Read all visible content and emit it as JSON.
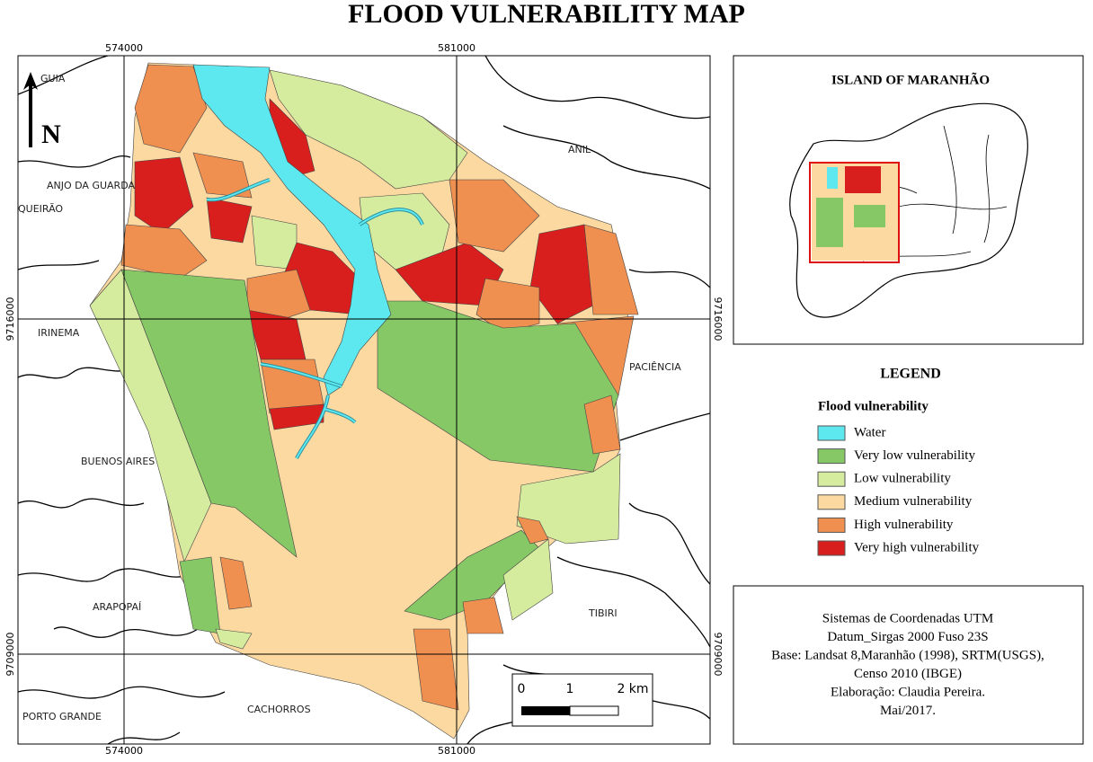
{
  "title": "FLOOD VULNERABILITY MAP",
  "map": {
    "grid_labels": {
      "top": [
        "574000",
        "581000"
      ],
      "bottom": [
        "574000",
        "581000"
      ],
      "left": [
        "9716000",
        "9709000"
      ],
      "right": [
        "9716000",
        "9709000"
      ]
    },
    "north": "N",
    "places": [
      "GUIA",
      "ANJO DA GUARDA",
      "QUEIRÃO",
      "ANIL",
      "IRINEMA",
      "PACIÊNCIA",
      "BUENOS AIRES",
      "ARAPOPAÍ",
      "TIBIRI",
      "CACHORROS",
      "PORTO GRANDE"
    ],
    "scale_bar": [
      "0",
      "1",
      "2 km"
    ]
  },
  "inset": {
    "title": "ISLAND OF MARANHÃO"
  },
  "legend": {
    "title": "LEGEND",
    "subtitle": "Flood vulnerability",
    "items": [
      {
        "label": "Water",
        "color": "#5ce8ee"
      },
      {
        "label": "Very low vulnerability",
        "color": "#85c865"
      },
      {
        "label": "Low vulnerability",
        "color": "#d5ec9f"
      },
      {
        "label": "Medium vulnerability",
        "color": "#fcd9a0"
      },
      {
        "label": "High vulnerability",
        "color": "#ef8f50"
      },
      {
        "label": "Very high vulnerability",
        "color": "#d91e1e"
      }
    ]
  },
  "credits": [
    "Sistemas de Coordenadas UTM",
    "Datum_Sirgas 2000 Fuso 23S",
    "Base: Landsat 8,Maranhão (1998), SRTM(USGS),",
    "Censo 2010 (IBGE)",
    "Elaboração: Claudia Pereira.",
    "Mai/2017."
  ]
}
